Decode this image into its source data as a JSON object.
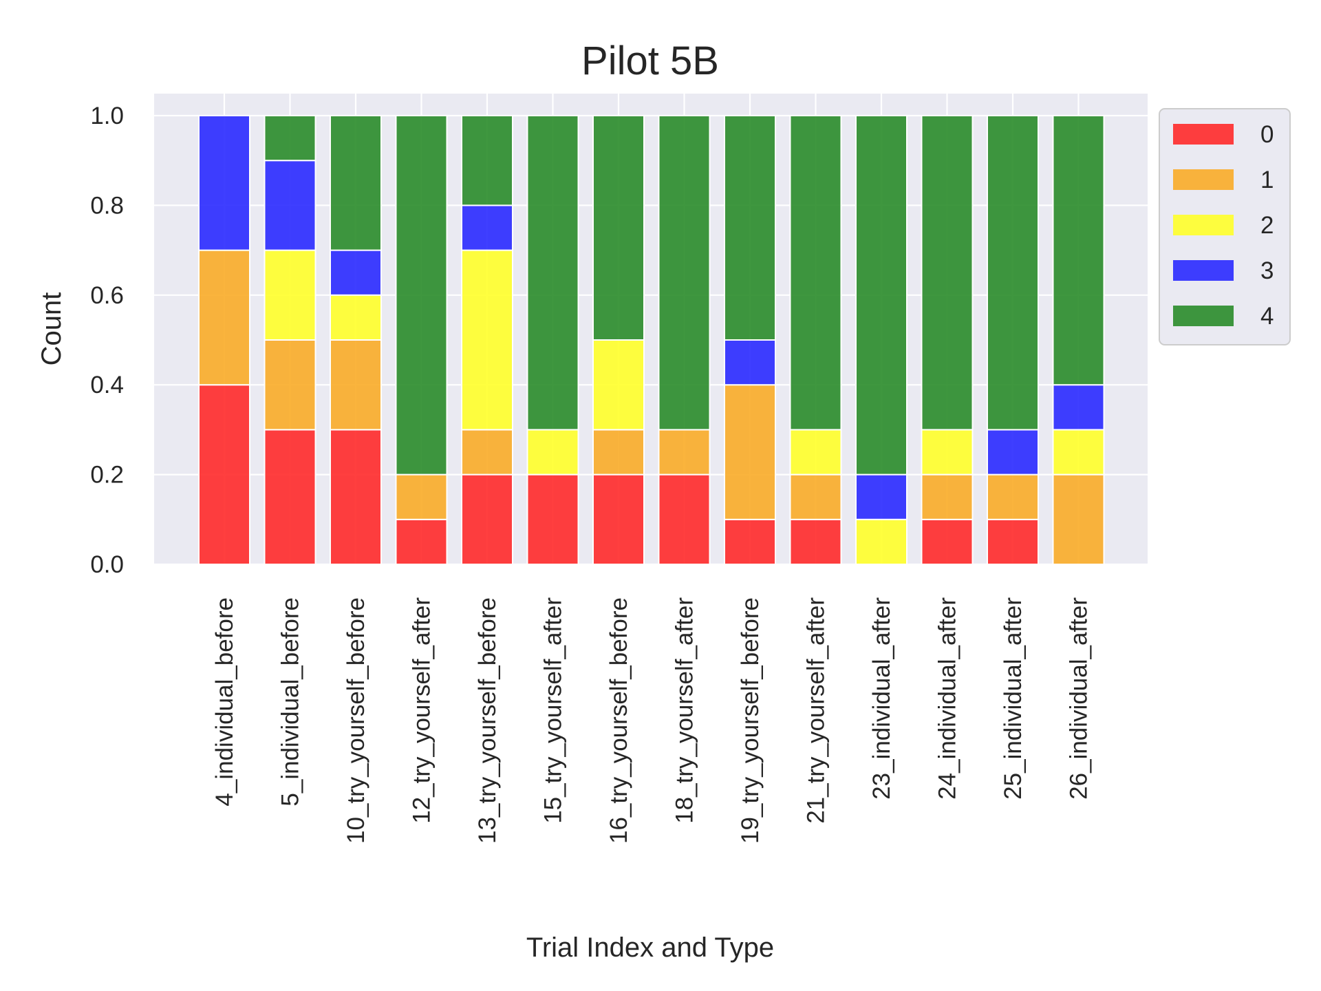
{
  "chart_data": {
    "type": "bar",
    "stacked": true,
    "title": "Pilot 5B",
    "xlabel": "Trial Index and Type",
    "ylabel": "Count",
    "ylim": [
      0,
      1.05
    ],
    "yticks": [
      "0.0",
      "0.2",
      "0.4",
      "0.6",
      "0.8",
      "1.0"
    ],
    "grid": true,
    "legend_position": "outside-top-right",
    "categories": [
      "4_individual_before",
      "5_individual_before",
      "10_try_yourself_before",
      "12_try_yourself_after",
      "13_try_yourself_before",
      "15_try_yourself_after",
      "16_try_yourself_before",
      "18_try_yourself_after",
      "19_try_yourself_before",
      "21_try_yourself_after",
      "23_individual_after",
      "24_individual_after",
      "25_individual_after",
      "26_individual_after"
    ],
    "series": [
      {
        "name": "0",
        "color": "#FF2A2A",
        "values": [
          0.4,
          0.3,
          0.3,
          0.1,
          0.2,
          0.2,
          0.2,
          0.2,
          0.1,
          0.1,
          0.0,
          0.1,
          0.1,
          0.0
        ]
      },
      {
        "name": "1",
        "color": "#FAAC28",
        "values": [
          0.3,
          0.2,
          0.2,
          0.1,
          0.1,
          0.0,
          0.1,
          0.1,
          0.3,
          0.1,
          0.0,
          0.1,
          0.1,
          0.2
        ]
      },
      {
        "name": "2",
        "color": "#FFFF2A",
        "values": [
          0.0,
          0.2,
          0.1,
          0.0,
          0.4,
          0.1,
          0.2,
          0.0,
          0.0,
          0.1,
          0.1,
          0.1,
          0.0,
          0.1
        ]
      },
      {
        "name": "3",
        "color": "#2A2AFF",
        "values": [
          0.3,
          0.2,
          0.1,
          0.0,
          0.1,
          0.0,
          0.0,
          0.0,
          0.1,
          0.0,
          0.1,
          0.0,
          0.1,
          0.1
        ]
      },
      {
        "name": "4",
        "color": "#2A8C2A",
        "values": [
          0.0,
          0.1,
          0.3,
          0.8,
          0.2,
          0.7,
          0.5,
          0.7,
          0.5,
          0.7,
          0.8,
          0.7,
          0.7,
          0.6
        ]
      }
    ]
  }
}
